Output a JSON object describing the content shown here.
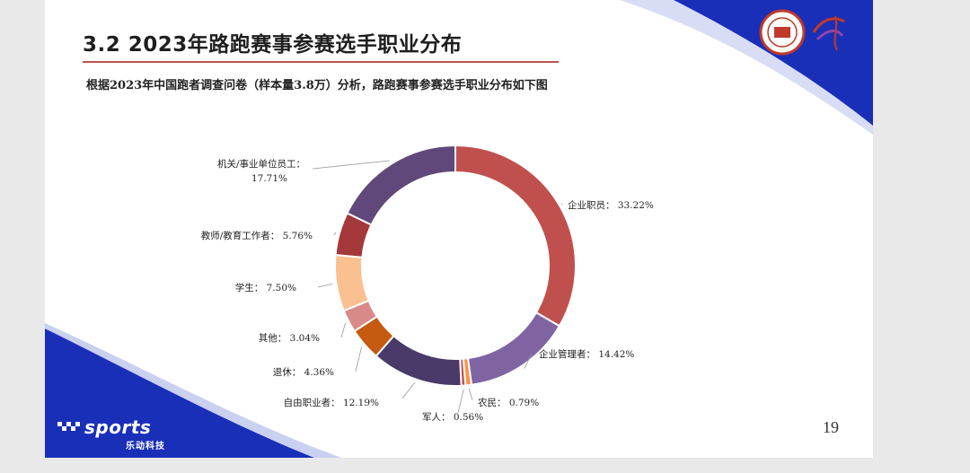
{
  "slide": {
    "title": "3.2 2023年路跑赛事参赛选手职业分布",
    "subtitle": "根据2023年中国跑者调查问卷（样本量3.8万）分析，路跑赛事参赛选手职业分布如下图",
    "page_number": "19",
    "brand": {
      "name": "sports",
      "sub": "乐动科技"
    }
  },
  "colors": {
    "accent_rule": "#c0504d",
    "banner_blue": "#1a2fb8"
  },
  "chart_data": {
    "type": "pie",
    "donut": true,
    "title": "",
    "categories": [
      "企业职员",
      "企业管理者",
      "农民",
      "军人",
      "自由职业者",
      "退休",
      "其他",
      "学生",
      "教师/教育工作者",
      "机关/事业单位员工"
    ],
    "values": [
      33.22,
      14.42,
      0.79,
      0.56,
      12.19,
      4.36,
      3.04,
      7.5,
      5.76,
      17.71
    ],
    "value_labels": [
      "33.22%",
      "14.42%",
      "0.79%",
      "0.56%",
      "12.19%",
      "4.36%",
      "3.04%",
      "7.50%",
      "5.76%",
      "17.71%"
    ],
    "colors": [
      "#c0504d",
      "#8064a2",
      "#f79646",
      "#c0504d",
      "#4a3a6a",
      "#c55a11",
      "#d88a89",
      "#fac090",
      "#a5383a",
      "#60497a"
    ],
    "legend": "none",
    "label_separator": "："
  }
}
